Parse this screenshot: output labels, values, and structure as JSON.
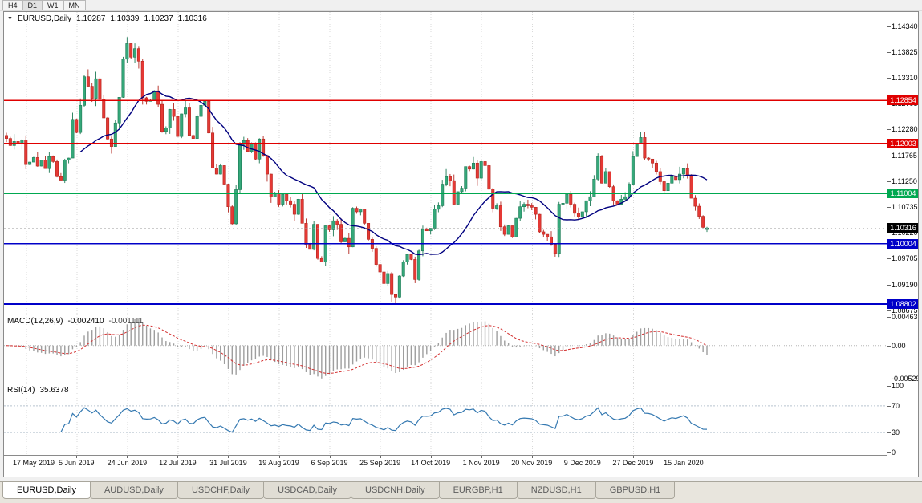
{
  "toolbar": {
    "timeframes": [
      {
        "label": "H4",
        "active": false
      },
      {
        "label": "D1",
        "active": true
      },
      {
        "label": "W1",
        "active": false
      },
      {
        "label": "MN",
        "active": false
      }
    ]
  },
  "main_chart": {
    "dropdown_icon": "▼",
    "symbol_label": "EURUSD,Daily",
    "ohlc": {
      "open": "1.10287",
      "high": "1.10339",
      "low": "1.10237",
      "close": "1.10316"
    },
    "y_axis_labels": [
      "1.14340",
      "1.13825",
      "1.13310",
      "1.12795",
      "1.12280",
      "1.11765",
      "1.11250",
      "1.10735",
      "1.10220",
      "1.09705",
      "1.09190",
      "1.08675"
    ],
    "hlines": [
      {
        "price": 1.12854,
        "label": "1.12854",
        "color": "#e00000",
        "width": 1.5
      },
      {
        "price": 1.12003,
        "label": "1.12003",
        "color": "#e00000",
        "width": 1.5
      },
      {
        "price": 1.11004,
        "label": "1.11004",
        "color": "#00a850",
        "width": 2
      },
      {
        "price": 1.10004,
        "label": "1.10004",
        "color": "#0000c8",
        "width": 1.5
      },
      {
        "price": 1.08802,
        "label": "1.08802",
        "color": "#0000c8",
        "width": 2
      }
    ],
    "current_price": {
      "value": 1.10316,
      "label": "1.10316",
      "bg": "#000000",
      "text": "#ffffff"
    }
  },
  "macd_panel": {
    "label": "MACD(12,26,9)",
    "value_main": "-0.002410",
    "value_signal": "-0.001111",
    "y_axis_labels": [
      "0.00463",
      "0.00",
      "-0.00529"
    ]
  },
  "rsi_panel": {
    "label": "RSI(14)",
    "value": "35.6378",
    "y_axis_labels": [
      "100",
      "70",
      "30",
      "0"
    ],
    "levels": [
      70,
      30
    ]
  },
  "chart_data": {
    "type": "candlestick",
    "symbol": "EURUSD",
    "timeframe": "Daily",
    "x_labels": [
      "17 May 2019",
      "5 Jun 2019",
      "24 Jun 2019",
      "12 Jul 2019",
      "31 Jul 2019",
      "19 Aug 2019",
      "6 Sep 2019",
      "25 Sep 2019",
      "14 Oct 2019",
      "1 Nov 2019",
      "20 Nov 2019",
      "9 Dec 2019",
      "27 Dec 2019",
      "15 Jan 2020"
    ],
    "x_label_indices": [
      5,
      18,
      31,
      44,
      57,
      70,
      83,
      96,
      109,
      122,
      135,
      148,
      161,
      174
    ],
    "closes": [
      1.121,
      1.1196,
      1.1204,
      1.12,
      1.1207,
      1.1158,
      1.1163,
      1.1172,
      1.1155,
      1.1167,
      1.115,
      1.1174,
      1.1164,
      1.1134,
      1.1127,
      1.1167,
      1.1171,
      1.1248,
      1.1222,
      1.1276,
      1.1333,
      1.1314,
      1.129,
      1.1329,
      1.1288,
      1.1251,
      1.1209,
      1.1194,
      1.1241,
      1.1292,
      1.1368,
      1.1399,
      1.1372,
      1.1389,
      1.1364,
      1.1291,
      1.1284,
      1.1286,
      1.1305,
      1.1278,
      1.1224,
      1.1231,
      1.1268,
      1.1254,
      1.1214,
      1.1259,
      1.1271,
      1.1216,
      1.121,
      1.1254,
      1.1276,
      1.1284,
      1.1221,
      1.1151,
      1.1139,
      1.1156,
      1.1119,
      1.1074,
      1.104,
      1.1108,
      1.1198,
      1.1206,
      1.1184,
      1.1201,
      1.1169,
      1.1209,
      1.1176,
      1.1139,
      1.1094,
      1.1101,
      1.1079,
      1.1099,
      1.1086,
      1.1079,
      1.1059,
      1.1089,
      1.1041,
      1.0999,
      1.0989,
      1.1039,
      1.0971,
      1.0964,
      1.1036,
      1.1028,
      1.1046,
      1.1039,
      1.1004,
      1.1011,
      1.0994,
      1.1071,
      1.1064,
      1.1069,
      1.1041,
      1.1009,
      1.0991,
      1.0959,
      1.0944,
      1.0921,
      1.0941,
      1.0899,
      1.0894,
      1.0936,
      1.0964,
      1.0979,
      1.0969,
      1.0929,
      1.0986,
      1.1029,
      1.1026,
      1.1031,
      1.1069,
      1.1076,
      1.1119,
      1.1134,
      1.1126,
      1.1079,
      1.1104,
      1.1111,
      1.1154,
      1.1149,
      1.1161,
      1.1131,
      1.1164,
      1.1156,
      1.1109,
      1.1071,
      1.1076,
      1.1034,
      1.1019,
      1.1036,
      1.1014,
      1.1051,
      1.1074,
      1.1079,
      1.1076,
      1.1073,
      1.1059,
      1.1024,
      1.1019,
      1.1014,
      1.0999,
      1.0981,
      1.1079,
      1.1081,
      1.1099,
      1.1079,
      1.1061,
      1.1054,
      1.1064,
      1.1086,
      1.1094,
      1.1129,
      1.1174,
      1.1121,
      1.1144,
      1.1114,
      1.1086,
      1.1079,
      1.1089,
      1.1094,
      1.1119,
      1.1174,
      1.1199,
      1.1212,
      1.1171,
      1.1169,
      1.1161,
      1.1144,
      1.1124,
      1.1106,
      1.1121,
      1.1134,
      1.1128,
      1.1139,
      1.115,
      1.1135,
      1.1091,
      1.1075,
      1.1055,
      1.1033,
      1.10316
    ],
    "high_extreme": 1.1412,
    "low_extreme": 1.0879,
    "y_range": [
      1.08625,
      1.1462
    ],
    "sma_period": 20,
    "indicators": {
      "macd": {
        "fast": 12,
        "slow": 26,
        "signal": 9
      },
      "rsi": {
        "period": 14
      }
    }
  },
  "bottom_tabs": [
    {
      "label": "EURUSD,Daily",
      "active": true
    },
    {
      "label": "AUDUSD,Daily",
      "active": false
    },
    {
      "label": "USDCHF,Daily",
      "active": false
    },
    {
      "label": "USDCAD,Daily",
      "active": false
    },
    {
      "label": "USDCNH,Daily",
      "active": false
    },
    {
      "label": "EURGBP,H1",
      "active": false
    },
    {
      "label": "NZDUSD,H1",
      "active": false
    },
    {
      "label": "GBPUSD,H1",
      "active": false
    }
  ],
  "colors": {
    "bull": "#35a87a",
    "bull_border": "#1d7a55",
    "bear": "#e53935",
    "bear_border": "#b3261e",
    "ma": "#00007f",
    "macd_hist": "#9e9e9e",
    "macd_signal": "#d32f2f",
    "rsi_line": "#3579b1",
    "grid": "#d9d9d9"
  }
}
